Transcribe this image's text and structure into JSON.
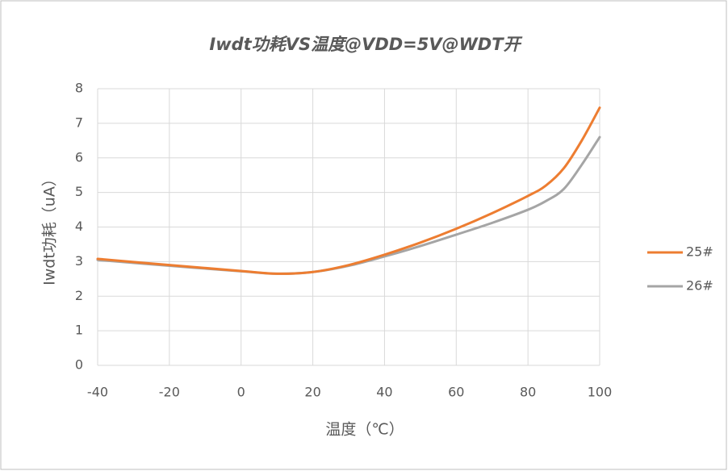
{
  "chart_data": {
    "type": "line",
    "title": "Iwdt功耗VS温度@VDD=5V@WDT开",
    "x_label": "温度（℃）",
    "y_label": "Iwdt功耗（uA）",
    "x": [
      -40,
      -20,
      0,
      10,
      20,
      30,
      40,
      50,
      60,
      70,
      80,
      85,
      90,
      95,
      100
    ],
    "series": [
      {
        "name": "25#",
        "color": "#ed7d31",
        "values": [
          3.08,
          2.9,
          2.73,
          2.65,
          2.7,
          2.9,
          3.2,
          3.55,
          3.95,
          4.4,
          4.9,
          5.2,
          5.7,
          6.5,
          7.45
        ]
      },
      {
        "name": "26#",
        "color": "#a5a5a5",
        "values": [
          3.05,
          2.88,
          2.72,
          2.65,
          2.7,
          2.88,
          3.15,
          3.45,
          3.78,
          4.12,
          4.5,
          4.75,
          5.1,
          5.8,
          6.6
        ]
      }
    ],
    "xlim": [
      -40,
      100
    ],
    "xticks": [
      -40,
      -20,
      0,
      20,
      40,
      60,
      80,
      100
    ],
    "ylim": [
      0,
      8
    ],
    "yticks": [
      0,
      1,
      2,
      3,
      4,
      5,
      6,
      7,
      8
    ],
    "grid": true,
    "legend": "right"
  }
}
